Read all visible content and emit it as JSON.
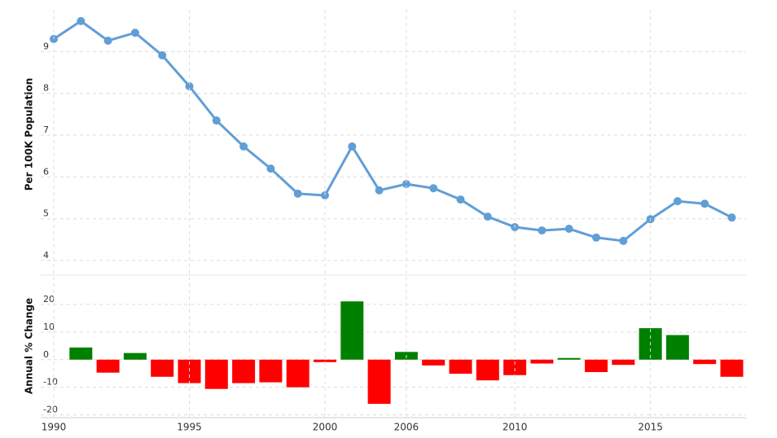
{
  "chart_data": [
    {
      "type": "line",
      "y_label": "Per 100K Population",
      "color": "#619ed6",
      "values": [
        9.3,
        9.73,
        9.26,
        9.45,
        8.91,
        8.17,
        7.35,
        6.73,
        6.2,
        5.6,
        5.56,
        6.73,
        5.68,
        5.83,
        5.73,
        5.46,
        5.05,
        4.8,
        4.72,
        4.76,
        4.55,
        4.47,
        4.99,
        5.42,
        5.36,
        5.03
      ],
      "ylim": [
        3.65,
        10
      ],
      "yticks": [
        4,
        5,
        6,
        7,
        8,
        9
      ],
      "grid": true
    },
    {
      "type": "bar",
      "y_label": "Annual % Change",
      "positive_color": "#008000",
      "negative_color": "#ff0000",
      "categories": [
        "1990",
        null,
        null,
        null,
        null,
        "1995",
        null,
        null,
        null,
        null,
        "2000",
        null,
        null,
        "2006",
        null,
        null,
        null,
        "2010",
        null,
        null,
        null,
        null,
        "2015",
        null,
        null,
        null
      ],
      "values": [
        null,
        4.4,
        -4.7,
        2.4,
        -6.2,
        -8.5,
        -10.6,
        -8.5,
        -8.2,
        -10.0,
        -0.9,
        21.1,
        -16.0,
        2.8,
        -2.1,
        -5.1,
        -7.5,
        -5.6,
        -1.4,
        0.6,
        -4.5,
        -1.9,
        11.4,
        8.9,
        -1.6,
        -6.2
      ],
      "ylim": [
        -21,
        30
      ],
      "yticks": [
        -20,
        -10,
        0,
        10,
        20
      ],
      "grid": true
    }
  ]
}
